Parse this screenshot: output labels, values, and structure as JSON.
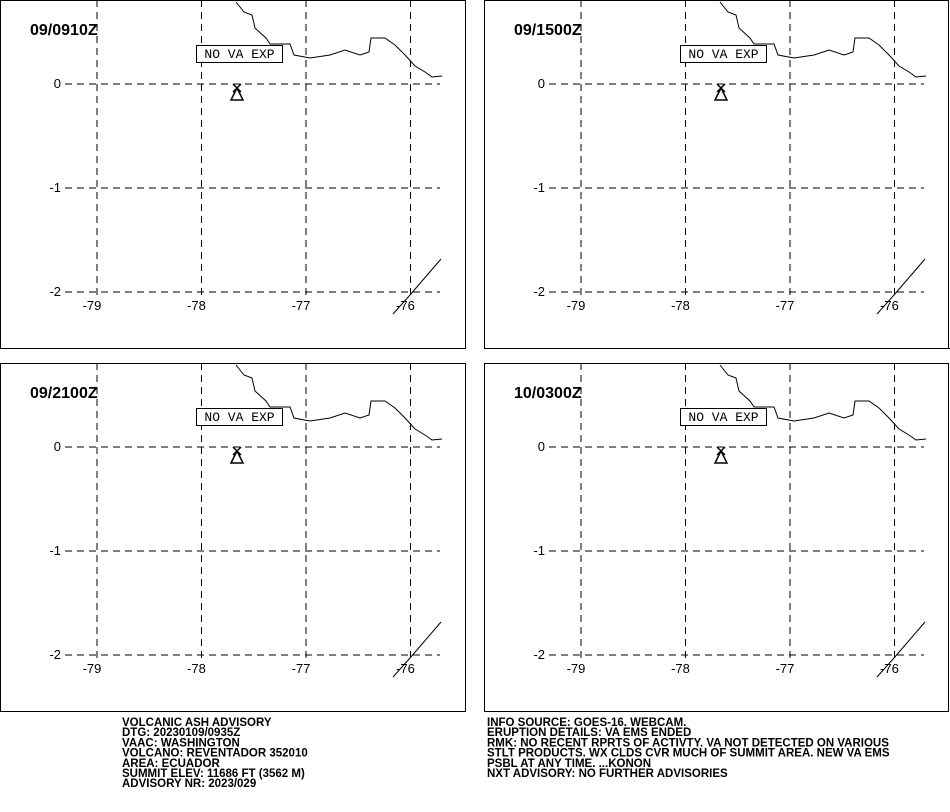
{
  "panels": [
    {
      "time": "09/0910Z",
      "label": "NO VA EXP"
    },
    {
      "time": "09/1500Z",
      "label": "NO VA EXP"
    },
    {
      "time": "09/2100Z",
      "label": "NO VA EXP"
    },
    {
      "time": "10/0300Z",
      "label": "NO VA EXP"
    }
  ],
  "xticks": [
    -79,
    -78,
    -77,
    -76
  ],
  "yticks": [
    0,
    -1,
    -2
  ],
  "advisory": [
    "VOLCANIC ASH ADVISORY",
    "DTG: 20230109/0935Z",
    "VAAC: WASHINGTON",
    "VOLCANO: REVENTADOR 352010",
    "AREA: ECUADOR",
    "SUMMIT ELEV: 11686 FT (3562 M)",
    "ADVISORY NR: 2023/029"
  ],
  "info": [
    "INFO SOURCE: GOES-16. WEBCAM.",
    "ERUPTION DETAILS: VA EMS ENDED",
    "RMK: NO RECENT RPRTS OF ACTIVTY. VA NOT DETECTED ON VARIOUS",
    "STLT PRODUCTS. WX CLDS CVR MUCH OF SUMMIT AREA. NEW VA EMS",
    "PSBL AT ANY TIME. ...KONON",
    "NXT ADVISORY: NO FURTHER ADVISORIES"
  ]
}
